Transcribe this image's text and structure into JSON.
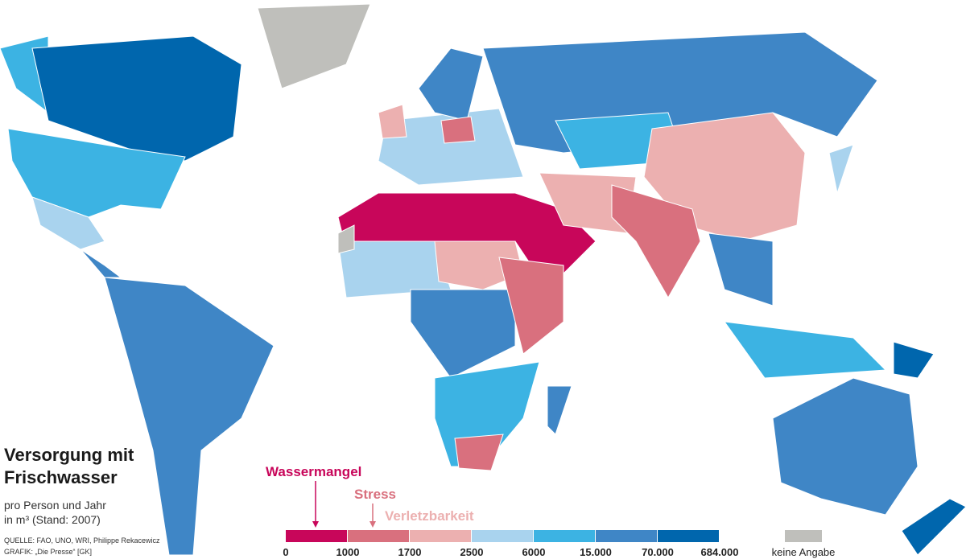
{
  "header": {
    "title_lines": [
      "Versorgung mit",
      "Frischwasser"
    ],
    "subtitle_lines": [
      "pro Person und Jahr",
      "in m³ (Stand: 2007)"
    ],
    "source_lines": [
      "QUELLE: FAO, UNO, WRI, Philippe Rekacewicz",
      "GRAFIK: „Die Presse“ [GK]"
    ]
  },
  "legend": {
    "colors": [
      "#c8065a",
      "#d9707e",
      "#ecb0b0",
      "#a9d3ee",
      "#3cb3e3",
      "#3f86c6",
      "#0066ad"
    ],
    "ticks": [
      "0",
      "1000",
      "1700",
      "2500",
      "6000",
      "15.000",
      "70.000",
      "684.000"
    ],
    "annotations": [
      "Wassermangel",
      "Stress",
      "Verletzbarkeit"
    ],
    "no_data": {
      "label": "keine Angabe",
      "color": "#bfbfbb"
    }
  }
}
